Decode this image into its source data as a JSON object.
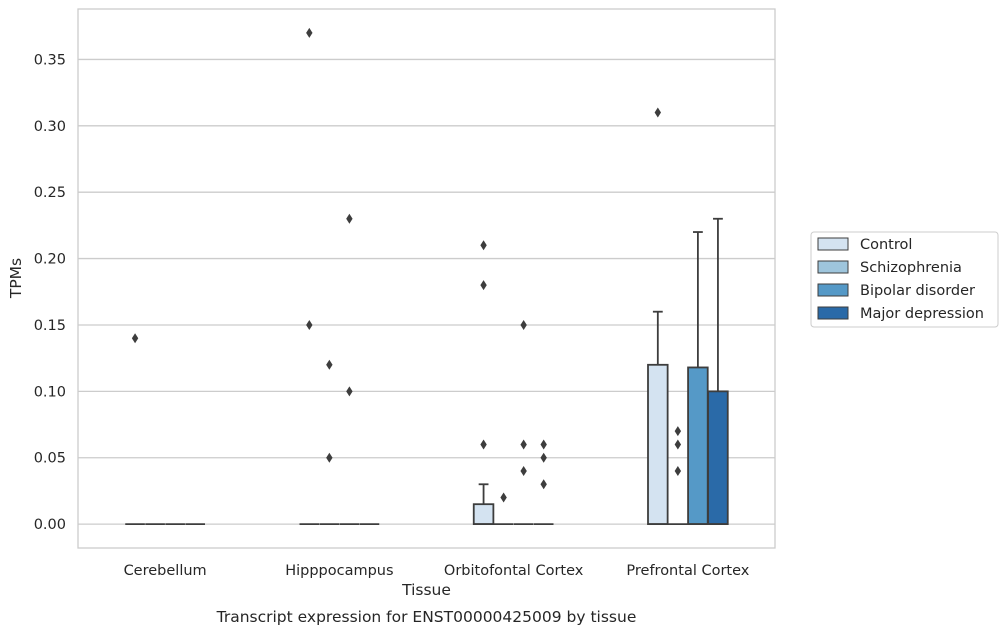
{
  "chart_data": {
    "type": "box",
    "xlabel": "Tissue",
    "ylabel": "TPMs",
    "caption": "Transcript expression for ENST00000425009 by tissue",
    "ylim": [
      -0.018,
      0.388
    ],
    "yticks": [
      0.0,
      0.05,
      0.1,
      0.15,
      0.2,
      0.25,
      0.3,
      0.35
    ],
    "ytick_labels": [
      "0.00",
      "0.05",
      "0.10",
      "0.15",
      "0.20",
      "0.25",
      "0.30",
      "0.35"
    ],
    "categories": [
      "Cerebellum",
      "Hipppocampus",
      "Orbitofontal Cortex",
      "Prefrontal Cortex"
    ],
    "grid": "horizontal",
    "legend_position": "right",
    "series": [
      {
        "name": "Control",
        "color": "#d4e3f1",
        "boxes": [
          {
            "q1": 0.0,
            "median": 0.0,
            "q3": 0.0,
            "whislo": 0.0,
            "whishi": 0.0,
            "fliers": [
              0.14
            ]
          },
          {
            "q1": 0.0,
            "median": 0.0,
            "q3": 0.0,
            "whislo": 0.0,
            "whishi": 0.0,
            "fliers": [
              0.37,
              0.15
            ]
          },
          {
            "q1": 0.0,
            "median": 0.0,
            "q3": 0.015,
            "whislo": 0.0,
            "whishi": 0.03,
            "fliers": [
              0.21,
              0.18,
              0.06
            ]
          },
          {
            "q1": 0.0,
            "median": 0.0,
            "q3": 0.12,
            "whislo": 0.0,
            "whishi": 0.16,
            "fliers": [
              0.31
            ]
          }
        ]
      },
      {
        "name": "Schizophrenia",
        "color": "#9ec5dc",
        "boxes": [
          {
            "q1": 0.0,
            "median": 0.0,
            "q3": 0.0,
            "whislo": 0.0,
            "whishi": 0.0,
            "fliers": []
          },
          {
            "q1": 0.0,
            "median": 0.0,
            "q3": 0.0,
            "whislo": 0.0,
            "whishi": 0.0,
            "fliers": [
              0.12,
              0.05
            ]
          },
          {
            "q1": 0.0,
            "median": 0.0,
            "q3": 0.0,
            "whislo": 0.0,
            "whishi": 0.0,
            "fliers": [
              0.02
            ]
          },
          {
            "q1": 0.0,
            "median": 0.0,
            "q3": 0.0,
            "whislo": 0.0,
            "whishi": 0.0,
            "fliers": [
              0.07,
              0.06,
              0.04
            ]
          }
        ]
      },
      {
        "name": "Bipolar disorder",
        "color": "#5599c7",
        "boxes": [
          {
            "q1": 0.0,
            "median": 0.0,
            "q3": 0.0,
            "whislo": 0.0,
            "whishi": 0.0,
            "fliers": []
          },
          {
            "q1": 0.0,
            "median": 0.0,
            "q3": 0.0,
            "whislo": 0.0,
            "whishi": 0.0,
            "fliers": [
              0.23,
              0.1
            ]
          },
          {
            "q1": 0.0,
            "median": 0.0,
            "q3": 0.0,
            "whislo": 0.0,
            "whishi": 0.0,
            "fliers": [
              0.15,
              0.06,
              0.04
            ]
          },
          {
            "q1": 0.0,
            "median": 0.0,
            "q3": 0.118,
            "whislo": 0.0,
            "whishi": 0.22,
            "fliers": []
          }
        ]
      },
      {
        "name": "Major depression",
        "color": "#2a6aa8",
        "boxes": [
          {
            "q1": 0.0,
            "median": 0.0,
            "q3": 0.0,
            "whislo": 0.0,
            "whishi": 0.0,
            "fliers": []
          },
          {
            "q1": 0.0,
            "median": 0.0,
            "q3": 0.0,
            "whislo": 0.0,
            "whishi": 0.0,
            "fliers": []
          },
          {
            "q1": 0.0,
            "median": 0.0,
            "q3": 0.0,
            "whislo": 0.0,
            "whishi": 0.0,
            "fliers": [
              0.06,
              0.05,
              0.03
            ]
          },
          {
            "q1": 0.0,
            "median": 0.0,
            "q3": 0.1,
            "whislo": 0.0,
            "whishi": 0.23,
            "fliers": []
          }
        ]
      }
    ]
  }
}
